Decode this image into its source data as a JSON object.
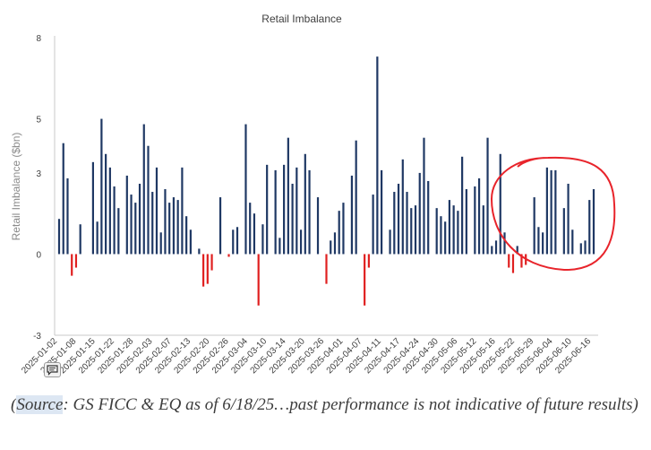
{
  "chart_data": {
    "type": "bar",
    "title": "Retail Imbalance",
    "ylabel": "Retail Imbalance ($bn)",
    "xlabel": "",
    "ylim": [
      -3,
      8
    ],
    "yticks": [
      8,
      5,
      3,
      0,
      -3
    ],
    "grid": false,
    "legend": "none",
    "x_tick_labels": [
      "2025-01-02",
      "2025-01-08",
      "2025-01-15",
      "2025-01-22",
      "2025-01-28",
      "2025-02-03",
      "2025-02-07",
      "2025-02-13",
      "2025-02-20",
      "2025-02-26",
      "2025-03-04",
      "2025-03-10",
      "2025-03-14",
      "2025-03-20",
      "2025-03-26",
      "2025-04-01",
      "2025-04-07",
      "2025-04-11",
      "2025-04-17",
      "2025-04-24",
      "2025-04-30",
      "2025-05-06",
      "2025-05-12",
      "2025-05-16",
      "2025-05-22",
      "2025-05-29",
      "2025-06-04",
      "2025-06-10",
      "2025-06-16"
    ],
    "values": [
      1.3,
      4.1,
      2.8,
      -0.8,
      -0.5,
      1.1,
      0,
      0,
      3.4,
      1.2,
      5.0,
      3.7,
      3.2,
      2.5,
      1.7,
      0,
      2.9,
      2.2,
      1.9,
      2.6,
      4.8,
      4.0,
      2.3,
      3.2,
      0.8,
      2.4,
      1.9,
      2.1,
      2.0,
      3.2,
      1.4,
      0.9,
      0,
      0.2,
      -1.2,
      -1.1,
      -0.6,
      0,
      2.1,
      0,
      -0.1,
      0.9,
      1.0,
      0,
      4.8,
      1.9,
      1.5,
      -1.9,
      1.1,
      3.3,
      0,
      3.1,
      0.6,
      3.3,
      4.3,
      2.6,
      3.2,
      0.9,
      3.7,
      3.1,
      0,
      2.1,
      0,
      -1.1,
      0.5,
      0.8,
      1.6,
      1.9,
      0,
      2.9,
      4.2,
      0,
      -1.9,
      -0.5,
      2.2,
      7.3,
      3.1,
      0,
      0.9,
      2.3,
      2.6,
      3.5,
      2.3,
      1.7,
      1.8,
      3.0,
      4.3,
      2.7,
      0,
      1.7,
      1.4,
      1.2,
      2.0,
      1.8,
      1.6,
      3.6,
      2.4,
      0,
      2.5,
      2.8,
      1.8,
      4.3,
      0.3,
      0.5,
      3.7,
      0.8,
      -0.5,
      -0.7,
      0.3,
      -0.5,
      -0.4,
      0,
      2.1,
      1.0,
      0.8,
      3.2,
      3.1,
      3.1,
      0,
      1.7,
      2.6,
      0.9,
      0,
      0.4,
      0.5,
      2.0,
      2.4
    ],
    "colors": {
      "positive": "#1f3864",
      "negative": "#e02020",
      "annotation": "#e8242b"
    },
    "annotation": {
      "shape": "hand-drawn-circle",
      "color": "#e8242b"
    }
  },
  "caption": {
    "source_word": "Source",
    "rest": ": GS FICC & EQ as of 6/18/25…past performance is not indicative of future results)",
    "open_paren": "("
  },
  "icons": {
    "comment": "comment-icon"
  }
}
